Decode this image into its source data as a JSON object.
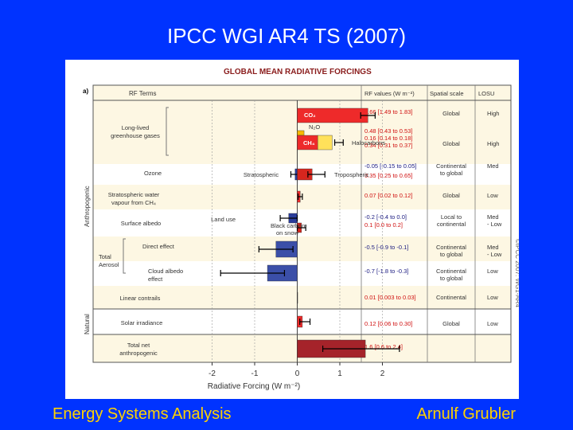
{
  "slide": {
    "title": "IPCC WGI AR4 TS (2007)",
    "footer_left": "Energy Systems Analysis",
    "footer_right": "Arnulf Grubler"
  },
  "colors": {
    "background": "#0033ff",
    "title": "#ffffff",
    "footer": "#ffd200",
    "co2": "#ee2a2a",
    "ch4": "#ee2a2a",
    "n2o": "#f7b800",
    "halocarbons": "#ffe15a",
    "ozone_strat": "#2a3d9b",
    "ozone_trop": "#d7261e",
    "aerosol": "#3b4fa8",
    "total": "#a5232a"
  },
  "chart_data": {
    "type": "bar",
    "title": "GLOBAL MEAN RADIATIVE FORCINGS",
    "panel_label": "a)",
    "xlabel": "Radiative Forcing (W m⁻²)",
    "xlim": [
      -2,
      2
    ],
    "xticks": [
      "-2",
      "-1",
      "0",
      "1",
      "2"
    ],
    "headers": {
      "rf_terms": "RF Terms",
      "rf_values": "RF values (W m⁻²)",
      "spatial": "Spatial scale",
      "losu": "LOSU"
    },
    "groups": {
      "anthropogenic": "Anthropogenic",
      "natural": "Natural"
    },
    "copyright": "©IPCC 2007: WG1-AR4",
    "rows": [
      {
        "labels": [
          "Long-lived",
          "greenhouse gases"
        ],
        "values": [
          "1.66 [1.49 to 1.83]",
          "0.48 [0.43 to 0.53]",
          "0.16 [0.14 to 0.18]",
          "0.34 [0.31 to 0.37]"
        ],
        "spatial": [
          "Global"
        ],
        "spatial2": [
          "Global"
        ],
        "losu": [
          "High"
        ],
        "losu2": [
          "High"
        ]
      },
      {
        "labels": [
          "Ozone"
        ],
        "values": [
          "-0.05 [-0.15 to 0.05]",
          "0.35 [0.25 to 0.65]"
        ],
        "spatial": [
          "Continental",
          "to global"
        ],
        "losu": [
          "Med"
        ]
      },
      {
        "labels": [
          "Stratospheric water",
          "vapour from CH₄"
        ],
        "values": [
          "0.07 [0.02 to 0.12]"
        ],
        "spatial": [
          "Global"
        ],
        "losu": [
          "Low"
        ]
      },
      {
        "labels": [
          "Surface albedo"
        ],
        "values": [
          "-0.2 [-0.4 to 0.0]",
          "0.1 [0.0 to 0.2]"
        ],
        "spatial": [
          "Local to",
          "continental"
        ],
        "losu": [
          "Med",
          "- Low"
        ]
      },
      {
        "labels": [
          "Direct effect"
        ],
        "values": [
          "-0.5 [-0.9 to -0.1]"
        ],
        "spatial": [
          "Continental",
          "to global"
        ],
        "losu": [
          "Med",
          "- Low"
        ]
      },
      {
        "labels": [
          "Cloud albedo",
          "effect"
        ],
        "values": [
          "-0.7 [-1.8 to -0.3]"
        ],
        "spatial": [
          "Continental",
          "to global"
        ],
        "losu": [
          "Low"
        ]
      },
      {
        "labels": [
          "Linear contrails"
        ],
        "values": [
          "0.01 [0.003 to 0.03]"
        ],
        "spatial": [
          "Continental"
        ],
        "losu": [
          "Low"
        ]
      },
      {
        "labels": [
          "Solar irradiance"
        ],
        "values": [
          "0.12 [0.06 to 0.30]"
        ],
        "spatial": [
          "Global"
        ],
        "losu": [
          "Low"
        ]
      },
      {
        "labels": [
          "Total net",
          "anthropogenic"
        ],
        "values": [
          "1.6 [0.6 to 2.4]"
        ],
        "spatial": [],
        "losu": []
      }
    ],
    "aerosol_label": [
      "Total",
      "Aerosol"
    ],
    "bars": [
      {
        "name": "CO₂",
        "value": 1.66,
        "low": 1.49,
        "high": 1.83,
        "color": "#ee2a2a"
      },
      {
        "name": "N₂O",
        "value": 0.16,
        "color": "#f7b800"
      },
      {
        "name": "CH₄",
        "value": 0.48,
        "color": "#ee2a2a"
      },
      {
        "name": "Halocarbons",
        "value": 0.34,
        "color": "#ffe15a",
        "low_total": 0.88,
        "high_total": 1.08
      },
      {
        "name": "Stratospheric",
        "value": -0.05,
        "low": -0.15,
        "high": 0.05,
        "color": "#2a3d9b"
      },
      {
        "name": "Tropospheric",
        "value": 0.35,
        "low": 0.25,
        "high": 0.65,
        "color": "#d7261e"
      },
      {
        "name": "Stratospheric water vapour",
        "value": 0.07,
        "low": 0.02,
        "high": 0.12,
        "color": "#ee2a2a"
      },
      {
        "name": "Land use",
        "value": -0.2,
        "low": -0.4,
        "high": 0.0,
        "color": "#2a3d9b"
      },
      {
        "name": "Black carbon on snow",
        "value": 0.1,
        "low": 0.0,
        "high": 0.2,
        "color": "#d7261e"
      },
      {
        "name": "Aerosol direct effect",
        "value": -0.5,
        "low": -0.9,
        "high": -0.1,
        "color": "#3b4fa8"
      },
      {
        "name": "Cloud albedo effect",
        "value": -0.7,
        "low": -1.8,
        "high": -0.3,
        "color": "#3b4fa8"
      },
      {
        "name": "Linear contrails",
        "value": 0.01,
        "low": 0.003,
        "high": 0.03,
        "color": "#2a2a2a"
      },
      {
        "name": "Solar irradiance",
        "value": 0.12,
        "low": 0.06,
        "high": 0.3,
        "color": "#ee2a2a"
      },
      {
        "name": "Total net anthropogenic",
        "value": 1.6,
        "low": 0.6,
        "high": 2.4,
        "color": "#a5232a"
      }
    ],
    "bar_labels": {
      "co2": "CO₂",
      "n2o": "N₂O",
      "ch4": "CH₄",
      "halocarbons": "Halocarbons",
      "stratospheric": "Stratospheric",
      "tropospheric": "Tropospheric",
      "land_use": "Land use",
      "black_carbon": [
        "Black carbon",
        "on snow"
      ]
    }
  }
}
